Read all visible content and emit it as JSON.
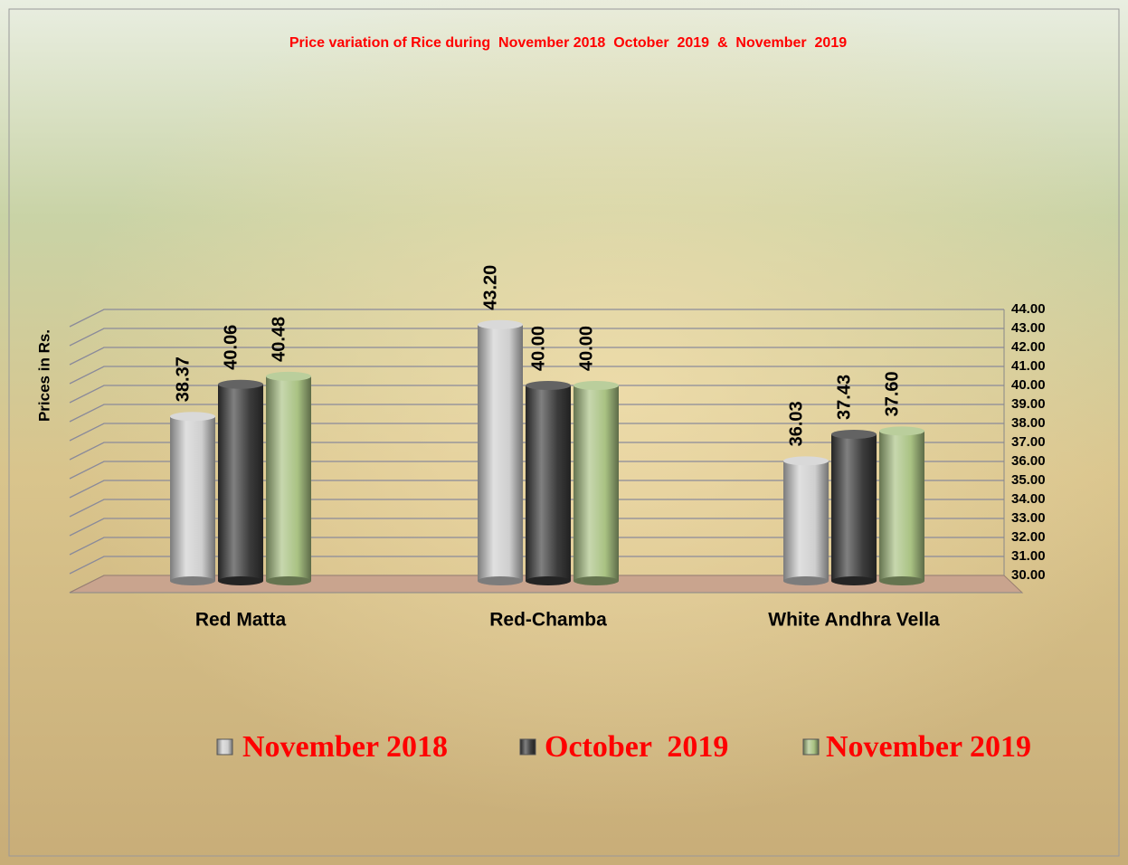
{
  "chart_data": {
    "type": "bar",
    "title": "Price variation of Rice during  November 2018  October  2019  &  November  2019",
    "y_label": "Prices in Rs.",
    "categories": [
      "Red Matta",
      "Red-Chamba",
      "White Andhra Vella"
    ],
    "series": [
      {
        "name": "November 2018",
        "color": "#cfcfcf",
        "values": [
          38.37,
          43.2,
          36.03
        ],
        "value_labels": [
          "38.37",
          "43.20",
          "36.03"
        ]
      },
      {
        "name": "October  2019",
        "color": "#3c3c3c",
        "values": [
          40.06,
          40,
          37.43
        ],
        "value_labels": [
          "40.06",
          "40.00",
          "37.43"
        ]
      },
      {
        "name": "November 2019",
        "color": "#a9c283",
        "values": [
          40.48,
          40,
          37.6
        ],
        "value_labels": [
          "40.48",
          "40.00",
          "37.60"
        ]
      }
    ],
    "ylim": [
      30,
      44
    ],
    "yticks": [
      {
        "value": 30,
        "label": "30.00"
      },
      {
        "value": 31,
        "label": "31.00"
      },
      {
        "value": 32,
        "label": "32.00"
      },
      {
        "value": 33,
        "label": "33.00"
      },
      {
        "value": 34,
        "label": "34.00"
      },
      {
        "value": 35,
        "label": "35.00"
      },
      {
        "value": 36,
        "label": "36.00"
      },
      {
        "value": 37,
        "label": "37.00"
      },
      {
        "value": 38,
        "label": "38.00"
      },
      {
        "value": 39,
        "label": "39.00"
      },
      {
        "value": 40,
        "label": "40.00"
      },
      {
        "value": 41,
        "label": "41.00"
      },
      {
        "value": 42,
        "label": "42.00"
      },
      {
        "value": 43,
        "label": "43.00"
      },
      {
        "value": 44,
        "label": "44.00"
      }
    ],
    "grid": true
  }
}
